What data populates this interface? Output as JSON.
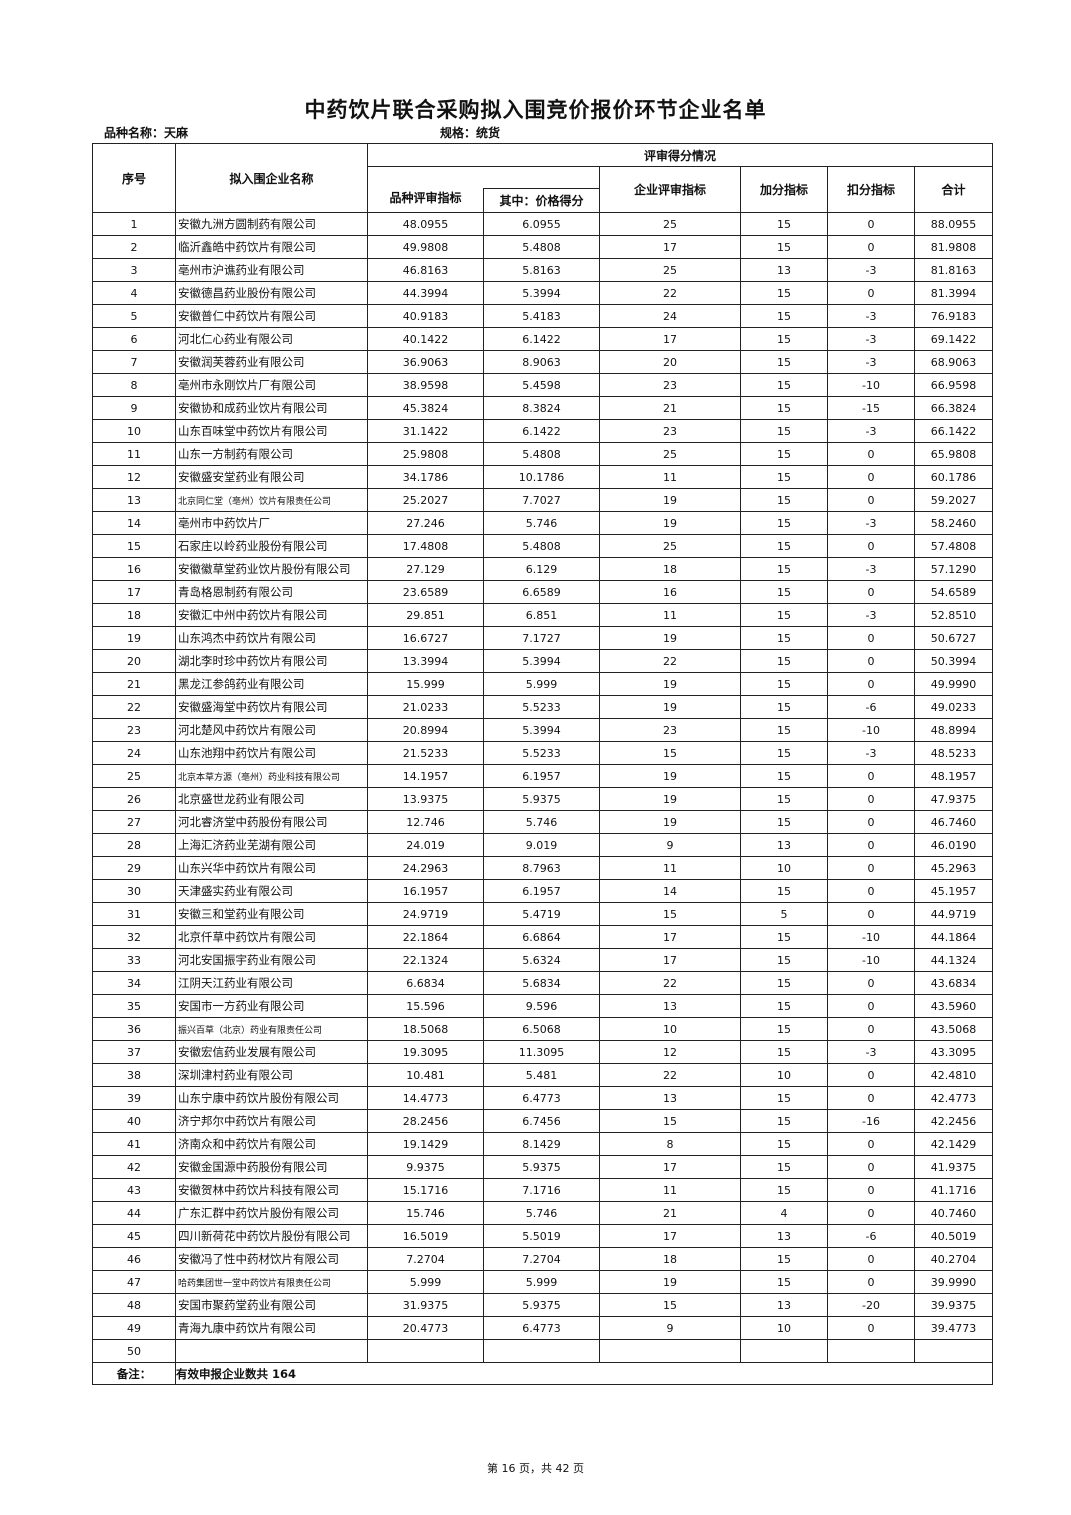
{
  "title": "中药饮片联合采购拟入围竞价报价环节企业名单",
  "variety_label": "品种名称：",
  "variety": "天麻",
  "spec_label": "规格：",
  "spec": "统货",
  "headers": {
    "no": "序号",
    "name": "拟入围企业名称",
    "group": "评审得分情况",
    "variety_score": "品种评审指标",
    "price_score": "其中：价格得分",
    "company_score": "企业评审指标",
    "bonus": "加分指标",
    "deduction": "扣分指标",
    "total": "合计"
  },
  "rows": [
    [
      "1",
      "安徽九洲方圆制药有限公司",
      "48.0955",
      "6.0955",
      "25",
      "15",
      "0",
      "88.0955"
    ],
    [
      "2",
      "临沂鑫皓中药饮片有限公司",
      "49.9808",
      "5.4808",
      "17",
      "15",
      "0",
      "81.9808"
    ],
    [
      "3",
      "亳州市沪谯药业有限公司",
      "46.8163",
      "5.8163",
      "25",
      "13",
      "-3",
      "81.8163"
    ],
    [
      "4",
      "安徽德昌药业股份有限公司",
      "44.3994",
      "5.3994",
      "22",
      "15",
      "0",
      "81.3994"
    ],
    [
      "5",
      "安徽普仁中药饮片有限公司",
      "40.9183",
      "5.4183",
      "24",
      "15",
      "-3",
      "76.9183"
    ],
    [
      "6",
      "河北仁心药业有限公司",
      "40.1422",
      "6.1422",
      "17",
      "15",
      "-3",
      "69.1422"
    ],
    [
      "7",
      "安徽润芙蓉药业有限公司",
      "36.9063",
      "8.9063",
      "20",
      "15",
      "-3",
      "68.9063"
    ],
    [
      "8",
      "亳州市永刚饮片厂有限公司",
      "38.9598",
      "5.4598",
      "23",
      "15",
      "-10",
      "66.9598"
    ],
    [
      "9",
      "安徽协和成药业饮片有限公司",
      "45.3824",
      "8.3824",
      "21",
      "15",
      "-15",
      "66.3824"
    ],
    [
      "10",
      "山东百味堂中药饮片有限公司",
      "31.1422",
      "6.1422",
      "23",
      "15",
      "-3",
      "66.1422"
    ],
    [
      "11",
      "山东一方制药有限公司",
      "25.9808",
      "5.4808",
      "25",
      "15",
      "0",
      "65.9808"
    ],
    [
      "12",
      "安徽盛安堂药业有限公司",
      "34.1786",
      "10.1786",
      "11",
      "15",
      "0",
      "60.1786"
    ],
    [
      "13",
      "北京同仁堂（亳州）饮片有限责任公司",
      "25.2027",
      "7.7027",
      "19",
      "15",
      "0",
      "59.2027"
    ],
    [
      "14",
      "亳州市中药饮片厂",
      "27.246",
      "5.746",
      "19",
      "15",
      "-3",
      "58.2460"
    ],
    [
      "15",
      "石家庄以岭药业股份有限公司",
      "17.4808",
      "5.4808",
      "25",
      "15",
      "0",
      "57.4808"
    ],
    [
      "16",
      "安徽徽草堂药业饮片股份有限公司",
      "27.129",
      "6.129",
      "18",
      "15",
      "-3",
      "57.1290"
    ],
    [
      "17",
      "青岛格恩制药有限公司",
      "23.6589",
      "6.6589",
      "16",
      "15",
      "0",
      "54.6589"
    ],
    [
      "18",
      "安徽汇中州中药饮片有限公司",
      "29.851",
      "6.851",
      "11",
      "15",
      "-3",
      "52.8510"
    ],
    [
      "19",
      "山东鸿杰中药饮片有限公司",
      "16.6727",
      "7.1727",
      "19",
      "15",
      "0",
      "50.6727"
    ],
    [
      "20",
      "湖北李时珍中药饮片有限公司",
      "13.3994",
      "5.3994",
      "22",
      "15",
      "0",
      "50.3994"
    ],
    [
      "21",
      "黑龙江参鸽药业有限公司",
      "15.999",
      "5.999",
      "19",
      "15",
      "0",
      "49.9990"
    ],
    [
      "22",
      "安徽盛海堂中药饮片有限公司",
      "21.0233",
      "5.5233",
      "19",
      "15",
      "-6",
      "49.0233"
    ],
    [
      "23",
      "河北楚风中药饮片有限公司",
      "20.8994",
      "5.3994",
      "23",
      "15",
      "-10",
      "48.8994"
    ],
    [
      "24",
      "山东池翔中药饮片有限公司",
      "21.5233",
      "5.5233",
      "15",
      "15",
      "-3",
      "48.5233"
    ],
    [
      "25",
      "北京本草方源（亳州）药业科技有限公司",
      "14.1957",
      "6.1957",
      "19",
      "15",
      "0",
      "48.1957"
    ],
    [
      "26",
      "北京盛世龙药业有限公司",
      "13.9375",
      "5.9375",
      "19",
      "15",
      "0",
      "47.9375"
    ],
    [
      "27",
      "河北睿济堂中药股份有限公司",
      "12.746",
      "5.746",
      "19",
      "15",
      "0",
      "46.7460"
    ],
    [
      "28",
      "上海汇济药业芜湖有限公司",
      "24.019",
      "9.019",
      "9",
      "13",
      "0",
      "46.0190"
    ],
    [
      "29",
      "山东兴华中药饮片有限公司",
      "24.2963",
      "8.7963",
      "11",
      "10",
      "0",
      "45.2963"
    ],
    [
      "30",
      "天津盛实药业有限公司",
      "16.1957",
      "6.1957",
      "14",
      "15",
      "0",
      "45.1957"
    ],
    [
      "31",
      "安徽三和堂药业有限公司",
      "24.9719",
      "5.4719",
      "15",
      "5",
      "0",
      "44.9719"
    ],
    [
      "32",
      "北京仟草中药饮片有限公司",
      "22.1864",
      "6.6864",
      "17",
      "15",
      "-10",
      "44.1864"
    ],
    [
      "33",
      "河北安国振宇药业有限公司",
      "22.1324",
      "5.6324",
      "17",
      "15",
      "-10",
      "44.1324"
    ],
    [
      "34",
      "江阴天江药业有限公司",
      "6.6834",
      "5.6834",
      "22",
      "15",
      "0",
      "43.6834"
    ],
    [
      "35",
      "安国市一方药业有限公司",
      "15.596",
      "9.596",
      "13",
      "15",
      "0",
      "43.5960"
    ],
    [
      "36",
      "振兴百草（北京）药业有限责任公司",
      "18.5068",
      "6.5068",
      "10",
      "15",
      "0",
      "43.5068"
    ],
    [
      "37",
      "安徽宏信药业发展有限公司",
      "19.3095",
      "11.3095",
      "12",
      "15",
      "-3",
      "43.3095"
    ],
    [
      "38",
      "深圳津村药业有限公司",
      "10.481",
      "5.481",
      "22",
      "10",
      "0",
      "42.4810"
    ],
    [
      "39",
      "山东宁康中药饮片股份有限公司",
      "14.4773",
      "6.4773",
      "13",
      "15",
      "0",
      "42.4773"
    ],
    [
      "40",
      "济宁邦尔中药饮片有限公司",
      "28.2456",
      "6.7456",
      "15",
      "15",
      "-16",
      "42.2456"
    ],
    [
      "41",
      "济南众和中药饮片有限公司",
      "19.1429",
      "8.1429",
      "8",
      "15",
      "0",
      "42.1429"
    ],
    [
      "42",
      "安徽金国源中药股份有限公司",
      "9.9375",
      "5.9375",
      "17",
      "15",
      "0",
      "41.9375"
    ],
    [
      "43",
      "安徽贺林中药饮片科技有限公司",
      "15.1716",
      "7.1716",
      "11",
      "15",
      "0",
      "41.1716"
    ],
    [
      "44",
      "广东汇群中药饮片股份有限公司",
      "15.746",
      "5.746",
      "21",
      "4",
      "0",
      "40.7460"
    ],
    [
      "45",
      "四川新荷花中药饮片股份有限公司",
      "16.5019",
      "5.5019",
      "17",
      "13",
      "-6",
      "40.5019"
    ],
    [
      "46",
      "安徽冯了性中药材饮片有限公司",
      "7.2704",
      "7.2704",
      "18",
      "15",
      "0",
      "40.2704"
    ],
    [
      "47",
      "哈药集团世一堂中药饮片有限责任公司",
      "5.999",
      "5.999",
      "19",
      "15",
      "0",
      "39.9990"
    ],
    [
      "48",
      "安国市聚药堂药业有限公司",
      "31.9375",
      "5.9375",
      "15",
      "13",
      "-20",
      "39.9375"
    ],
    [
      "49",
      "青海九康中药饮片有限公司",
      "20.4773",
      "6.4773",
      "9",
      "10",
      "0",
      "39.4773"
    ],
    [
      "50",
      "",
      "",
      "",
      "",
      "",
      "",
      ""
    ]
  ],
  "note_label": "备注：",
  "note": "有效申报企业数共 164",
  "footer": "第 16 页，共 42 页"
}
